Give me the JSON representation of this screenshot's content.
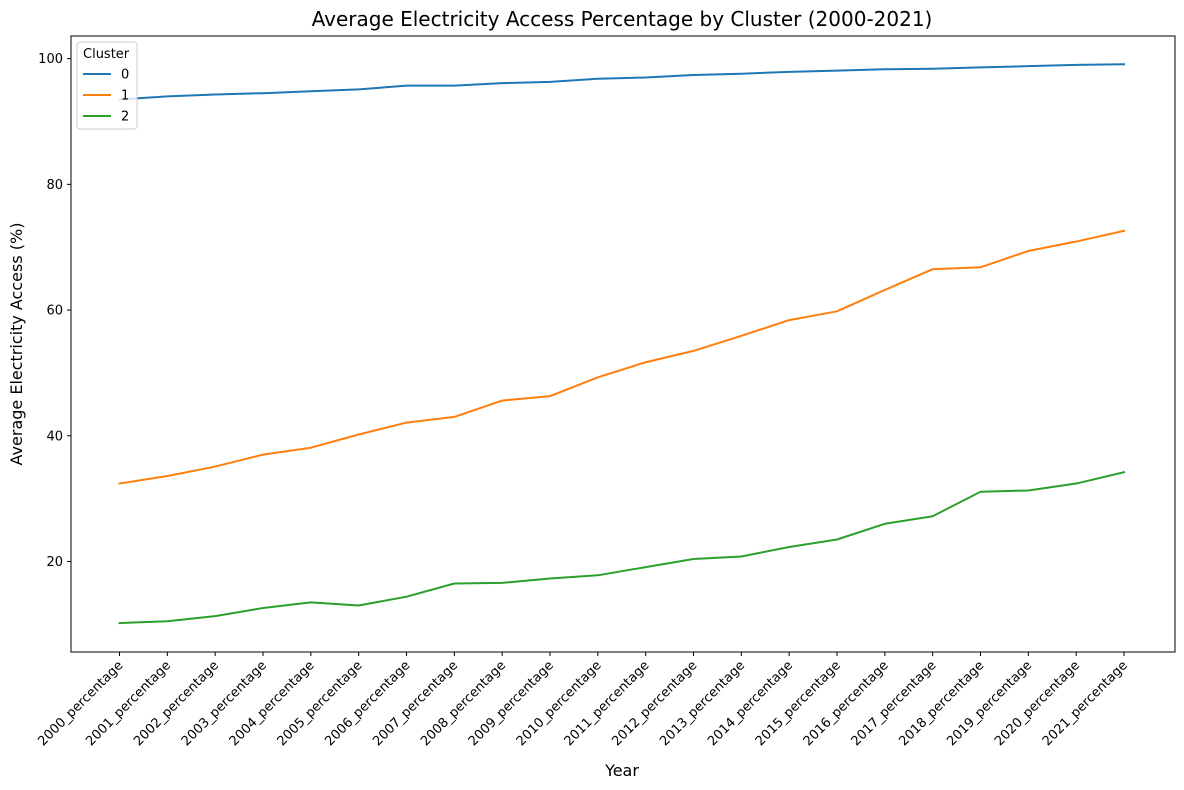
{
  "chart_data": {
    "type": "line",
    "title": "Average Electricity Access Percentage by Cluster (2000-2021)",
    "xlabel": "Year",
    "ylabel": "Average Electricity Access (%)",
    "ylim": [
      5.6,
      103.6
    ],
    "yticks": [
      20,
      40,
      60,
      80,
      100
    ],
    "grid": false,
    "legend": {
      "title": "Cluster",
      "position": "top-left"
    },
    "categories": [
      "2000_percentage",
      "2001_percentage",
      "2002_percentage",
      "2003_percentage",
      "2004_percentage",
      "2005_percentage",
      "2006_percentage",
      "2007_percentage",
      "2008_percentage",
      "2009_percentage",
      "2010_percentage",
      "2011_percentage",
      "2012_percentage",
      "2013_percentage",
      "2014_percentage",
      "2015_percentage",
      "2016_percentage",
      "2017_percentage",
      "2018_percentage",
      "2019_percentage",
      "2020_percentage",
      "2021_percentage"
    ],
    "series": [
      {
        "name": "0",
        "color": "#1f77b4",
        "values": [
          93.5,
          94.0,
          94.3,
          94.5,
          94.8,
          95.1,
          95.7,
          95.7,
          96.1,
          96.3,
          96.8,
          97.0,
          97.4,
          97.6,
          97.9,
          98.1,
          98.3,
          98.4,
          98.6,
          98.8,
          99.0,
          99.1
        ]
      },
      {
        "name": "1",
        "color": "#ff7f0e",
        "values": [
          32.4,
          33.6,
          35.1,
          37.0,
          38.1,
          40.2,
          42.1,
          43.0,
          45.6,
          46.3,
          49.3,
          51.7,
          53.5,
          55.9,
          58.4,
          59.8,
          63.2,
          66.5,
          66.8,
          69.4,
          70.9,
          72.6
        ]
      },
      {
        "name": "2",
        "color": "#2ca02c",
        "values": [
          10.2,
          10.5,
          11.3,
          12.6,
          13.5,
          13.0,
          14.4,
          16.5,
          16.6,
          17.3,
          17.8,
          19.1,
          20.4,
          20.8,
          22.3,
          23.5,
          26.0,
          27.2,
          31.1,
          31.3,
          32.4,
          34.2
        ]
      }
    ]
  }
}
